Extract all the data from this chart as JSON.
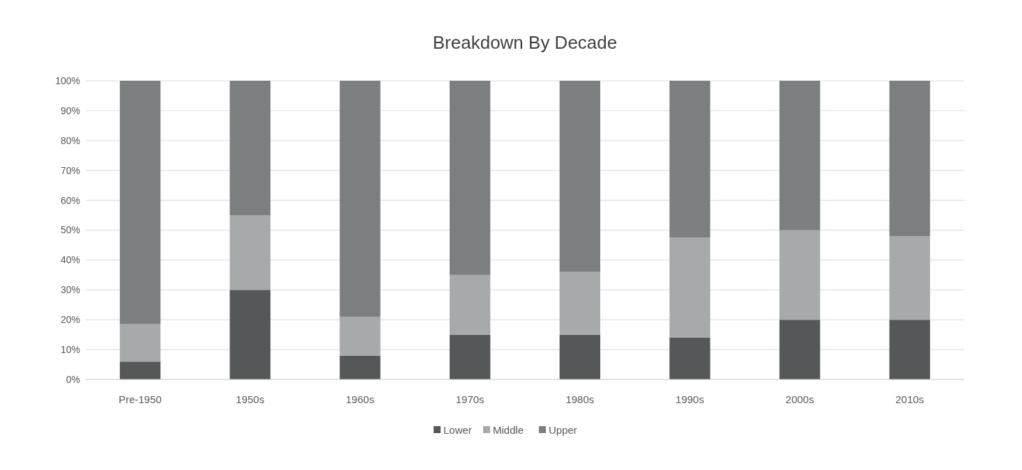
{
  "chart_data": {
    "type": "bar",
    "title": "Breakdown By Decade",
    "stacked": true,
    "categories": [
      "Pre-1950",
      "1950s",
      "1960s",
      "1970s",
      "1980s",
      "1990s",
      "2000s",
      "2010s"
    ],
    "series": [
      {
        "name": "Lower",
        "color": "#545859",
        "values": [
          6,
          30,
          8,
          15,
          15,
          14,
          20,
          20
        ]
      },
      {
        "name": "Middle",
        "color": "#a7aaaa",
        "values": [
          12.5,
          25,
          13,
          20,
          21,
          33.5,
          30,
          28
        ]
      },
      {
        "name": "Upper",
        "color": "#7b7f80",
        "values": [
          81.5,
          45,
          79,
          65,
          64,
          52.5,
          50,
          52
        ]
      }
    ],
    "ylim": [
      0,
      100
    ],
    "yticks": [
      {
        "value": 0,
        "label": "0%"
      },
      {
        "value": 10,
        "label": "10%"
      },
      {
        "value": 20,
        "label": "20%"
      },
      {
        "value": 30,
        "label": "30%"
      },
      {
        "value": 40,
        "label": "40%"
      },
      {
        "value": 50,
        "label": "50%"
      },
      {
        "value": 60,
        "label": "60%"
      },
      {
        "value": 70,
        "label": "70%"
      },
      {
        "value": 80,
        "label": "80%"
      },
      {
        "value": 90,
        "label": "90%"
      },
      {
        "value": 100,
        "label": "100%"
      }
    ],
    "grid": "y",
    "legend": "bottom"
  }
}
